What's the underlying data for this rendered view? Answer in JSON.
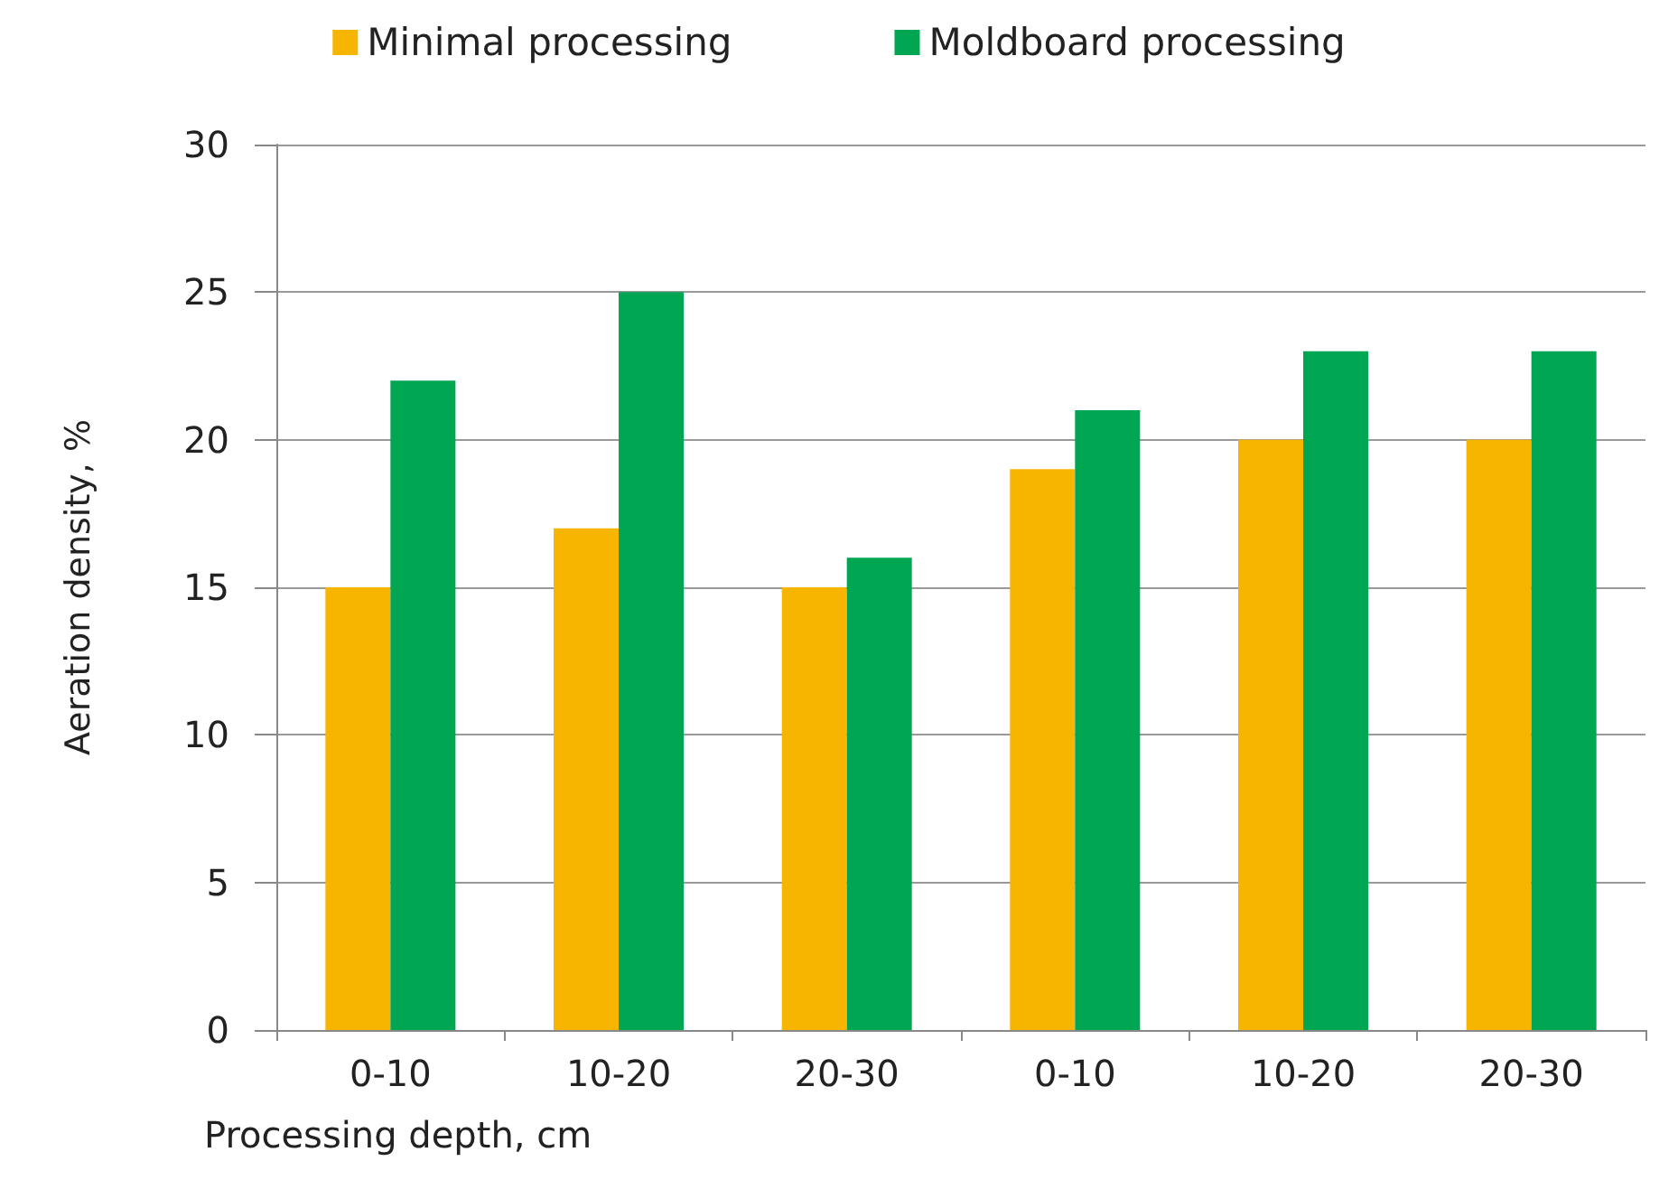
{
  "chart_data": {
    "type": "bar",
    "xlabel": "Processing depth, cm",
    "ylabel": "Aeration density, %",
    "categories": [
      "0-10",
      "10-20",
      "20-30",
      "0-10",
      "10-20",
      "20-30"
    ],
    "series": [
      {
        "name": "Minimal processing",
        "color": "#f7b500",
        "values": [
          15,
          17,
          15,
          19,
          20,
          20
        ]
      },
      {
        "name": "Moldboard processing",
        "color": "#00a651",
        "values": [
          22,
          25,
          16,
          21,
          23,
          23
        ]
      }
    ],
    "ylim": [
      0,
      30
    ],
    "yticks": [
      0,
      5,
      10,
      15,
      20,
      25,
      30
    ],
    "grid": "y",
    "legend": "top"
  }
}
